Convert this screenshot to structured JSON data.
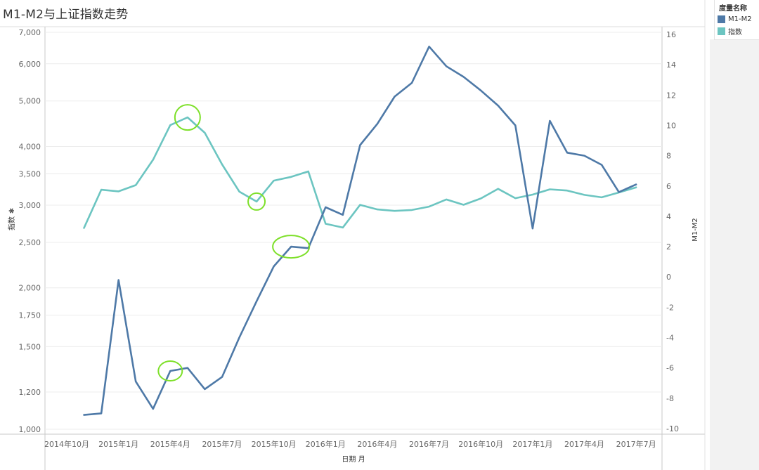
{
  "title": "M1-M2与上证指数走势",
  "legend": {
    "title": "度量名称",
    "items": [
      {
        "label": "M1-M2",
        "color": "#4e79a7"
      },
      {
        "label": "指数",
        "color": "#6cc5c1"
      }
    ]
  },
  "chart_data": {
    "type": "line",
    "title": "M1-M2与上证指数走势",
    "xlabel": "日期 月",
    "ylabel_left": "指数",
    "ylabel_right": "M1-M2",
    "x_ticks": [
      "2014年10月",
      "2015年1月",
      "2015年4月",
      "2015年7月",
      "2015年10月",
      "2016年1月",
      "2016年4月",
      "2016年7月",
      "2016年10月",
      "2017年1月",
      "2017年4月",
      "2017年7月"
    ],
    "x": [
      "2014-11",
      "2014-12",
      "2015-01",
      "2015-02",
      "2015-03",
      "2015-04",
      "2015-05",
      "2015-06",
      "2015-07",
      "2015-08",
      "2015-09",
      "2015-10",
      "2015-11",
      "2015-12",
      "2016-01",
      "2016-02",
      "2016-03",
      "2016-04",
      "2016-05",
      "2016-06",
      "2016-07",
      "2016-08",
      "2016-09",
      "2016-10",
      "2016-11",
      "2016-12",
      "2017-01",
      "2017-02",
      "2017-03",
      "2017-04",
      "2017-05",
      "2017-06",
      "2017-07"
    ],
    "left_axis": {
      "scale": "log",
      "ticks": [
        "1,000",
        "1,200",
        "1,500",
        "1,750",
        "2,000",
        "2,500",
        "3,000",
        "3,500",
        "4,000",
        "5,000",
        "6,000",
        "7,000"
      ],
      "range": [
        1000,
        7000
      ]
    },
    "right_axis": {
      "scale": "linear",
      "ticks": [
        "-10",
        "-8",
        "-6",
        "-4",
        "-2",
        "0",
        "2",
        "4",
        "6",
        "8",
        "10",
        "12",
        "14",
        "16"
      ],
      "range": [
        -10,
        16
      ]
    },
    "series": [
      {
        "name": "指数",
        "axis": "left",
        "color": "#6cc5c1",
        "values": [
          2682,
          3235,
          3210,
          3310,
          3748,
          4441,
          4612,
          4277,
          3664,
          3206,
          3053,
          3383,
          3446,
          3539,
          2738,
          2688,
          3004,
          2938,
          2917,
          2930,
          2979,
          3085,
          3005,
          3100,
          3250,
          3104,
          3159,
          3242,
          3223,
          3155,
          3117,
          3192,
          3273
        ]
      },
      {
        "name": "M1-M2",
        "axis": "right",
        "color": "#4e79a7",
        "values": [
          -9.1,
          -9.0,
          -0.2,
          -6.9,
          -8.7,
          -6.2,
          -6.0,
          -7.4,
          -6.6,
          -4.0,
          -1.6,
          0.7,
          2.0,
          1.9,
          4.6,
          4.1,
          8.7,
          10.1,
          11.9,
          12.8,
          15.2,
          13.9,
          13.2,
          12.3,
          11.3,
          10.0,
          3.2,
          10.3,
          8.2,
          8.0,
          7.4,
          5.6,
          6.1
        ]
      }
    ],
    "annotations": [
      {
        "series": "指数",
        "x": "2015-05"
      },
      {
        "series": "指数",
        "x": "2015-09"
      },
      {
        "series": "M1-M2",
        "x": "2015-11"
      },
      {
        "series": "M1-M2",
        "x": "2015-04"
      }
    ],
    "grid": true
  }
}
